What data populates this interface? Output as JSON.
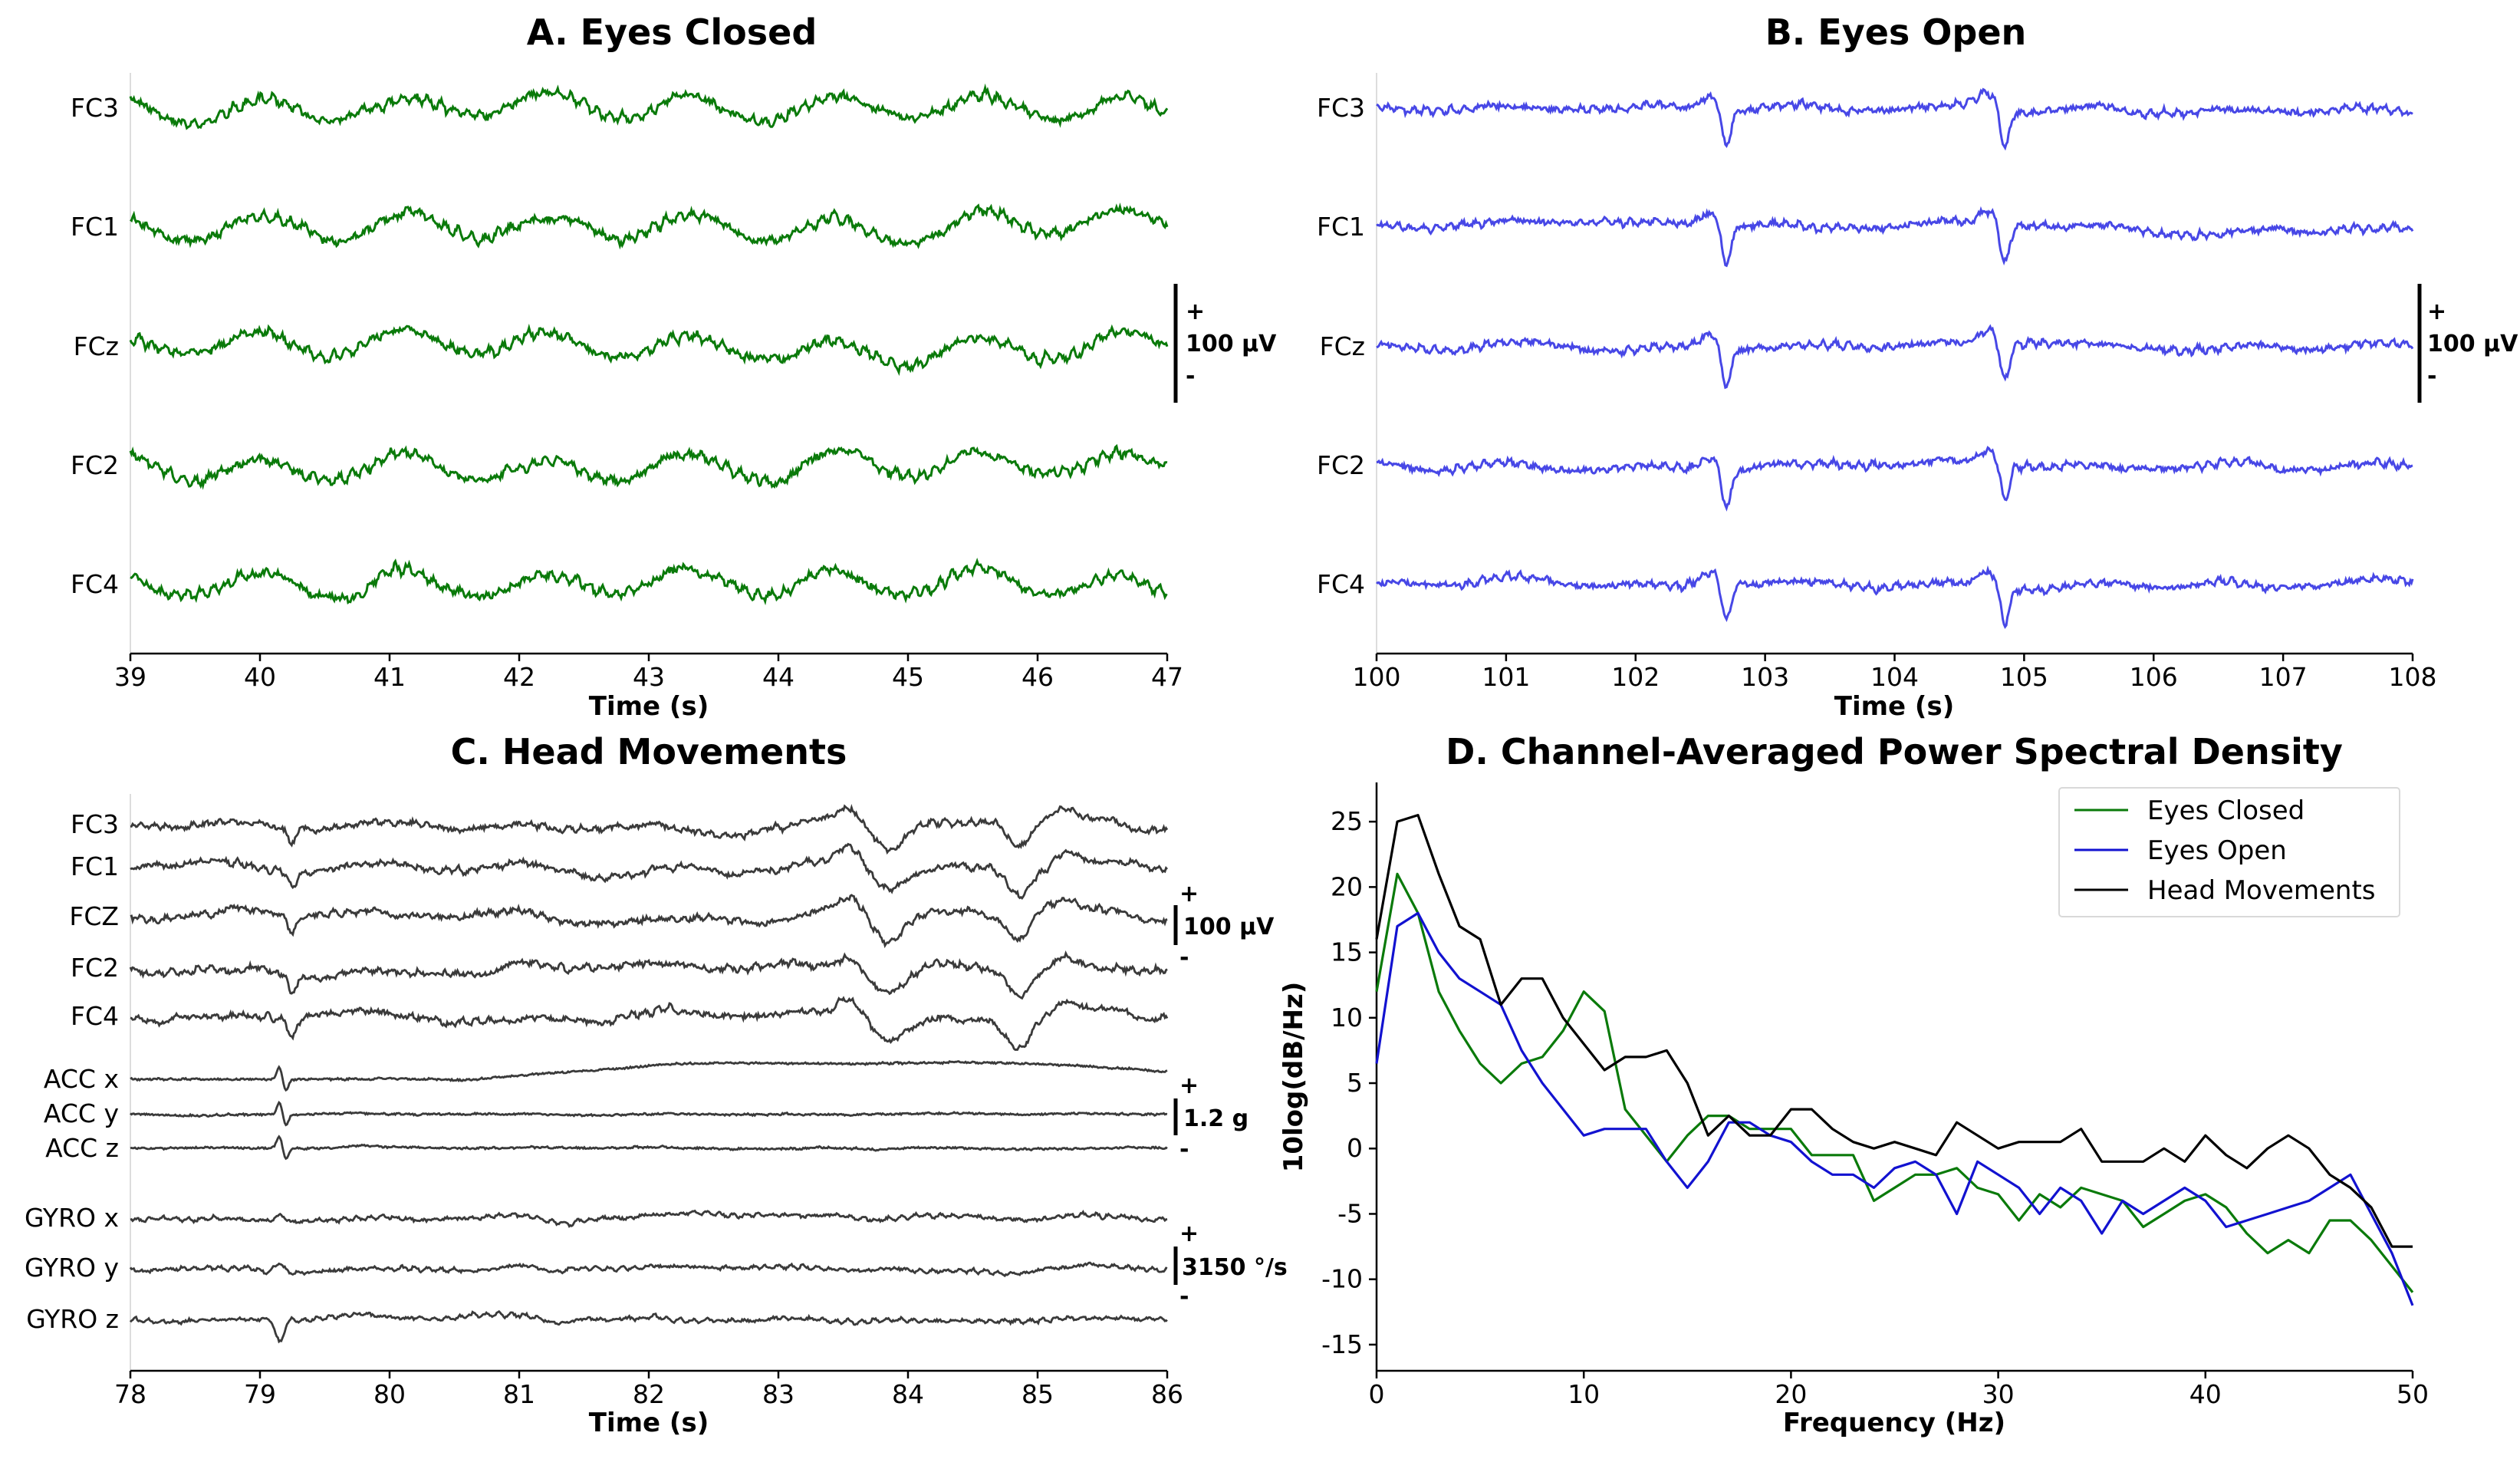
{
  "chart_data": [
    {
      "type": "line",
      "panel": "A",
      "title": "A. Eyes Closed",
      "xlabel": "Time (s)",
      "xlim": [
        39,
        47
      ],
      "xticks": [
        "39",
        "40",
        "41",
        "42",
        "43",
        "44",
        "45",
        "46",
        "47"
      ],
      "channels": [
        "FC3",
        "FC1",
        "FCz",
        "FC2",
        "FC4"
      ],
      "color": "#0a7a0a",
      "scale_bar": {
        "plus": "+",
        "label": "100 µV",
        "minus": "-"
      }
    },
    {
      "type": "line",
      "panel": "B",
      "title": "B. Eyes Open",
      "xlabel": "Time (s)",
      "xlim": [
        100,
        108
      ],
      "xticks": [
        "100",
        "101",
        "102",
        "103",
        "104",
        "105",
        "106",
        "107",
        "108"
      ],
      "channels": [
        "FC3",
        "FC1",
        "FCz",
        "FC2",
        "FC4"
      ],
      "color": "#4747e6",
      "blink_times": [
        102.7,
        104.85
      ],
      "scale_bar": {
        "plus": "+",
        "label": "100 µV",
        "minus": "-"
      }
    },
    {
      "type": "line",
      "panel": "C",
      "title": "C. Head Movements",
      "xlabel": "Time (s)",
      "xlim": [
        78,
        86
      ],
      "xticks": [
        "78",
        "79",
        "80",
        "81",
        "82",
        "83",
        "84",
        "85",
        "86"
      ],
      "channels": [
        "FC3",
        "FC1",
        "FCZ",
        "FC2",
        "FC4",
        "ACC x",
        "ACC y",
        "ACC z",
        "GYRO x",
        "GYRO y",
        "GYRO z"
      ],
      "color": "#3a3a3a",
      "scale_bars": [
        {
          "plus": "+",
          "label": "100 µV",
          "minus": "-"
        },
        {
          "plus": "+",
          "label": "1.2 g",
          "minus": "-"
        },
        {
          "plus": "+",
          "label": "3150 °/s",
          "minus": "-"
        }
      ]
    },
    {
      "type": "line",
      "panel": "D",
      "title": "D. Channel-Averaged Power Spectral Density",
      "xlabel": "Frequency (Hz)",
      "ylabel": "10log(dB/Hz)",
      "xlim": [
        0,
        50
      ],
      "ylim": [
        -17,
        28
      ],
      "xticks": [
        "0",
        "10",
        "20",
        "30",
        "40",
        "50"
      ],
      "yticks": [
        "-15",
        "-10",
        "-5",
        "0",
        "5",
        "10",
        "15",
        "20",
        "25"
      ],
      "legend_position": "top-right",
      "series": [
        {
          "name": "Eyes Closed",
          "color": "#0a7a0a",
          "x": [
            0,
            1,
            2,
            3,
            4,
            5,
            6,
            7,
            8,
            9,
            10,
            11,
            12,
            13,
            14,
            15,
            16,
            17,
            18,
            19,
            20,
            21,
            22,
            23,
            24,
            25,
            26,
            27,
            28,
            29,
            30,
            31,
            32,
            33,
            34,
            35,
            36,
            37,
            38,
            39,
            40,
            41,
            42,
            43,
            44,
            45,
            46,
            47,
            48,
            49,
            50
          ],
          "values": [
            12,
            21,
            18,
            12,
            9,
            6.5,
            5,
            6.5,
            7,
            9,
            12,
            10.5,
            3,
            1,
            -1,
            1,
            2.5,
            2.5,
            1.5,
            1.5,
            1.5,
            -0.5,
            -0.5,
            -0.5,
            -4,
            -3,
            -2,
            -2,
            -1.5,
            -3,
            -3.5,
            -5.5,
            -3.5,
            -4.5,
            -3,
            -3.5,
            -4,
            -6,
            -5,
            -4,
            -3.5,
            -4.5,
            -6.5,
            -8,
            -7,
            -8,
            -5.5,
            -5.5,
            -7,
            -9,
            -11
          ]
        },
        {
          "name": "Eyes Open",
          "color": "#1212d0",
          "x": [
            0,
            1,
            2,
            3,
            4,
            5,
            6,
            7,
            8,
            9,
            10,
            11,
            12,
            13,
            14,
            15,
            16,
            17,
            18,
            19,
            20,
            21,
            22,
            23,
            24,
            25,
            26,
            27,
            28,
            29,
            30,
            31,
            32,
            33,
            34,
            35,
            36,
            37,
            38,
            39,
            40,
            41,
            42,
            43,
            44,
            45,
            46,
            47,
            48,
            49,
            50
          ],
          "values": [
            6.5,
            17,
            18,
            15,
            13,
            12,
            11,
            7.5,
            5,
            3,
            1,
            1.5,
            1.5,
            1.5,
            -1,
            -3,
            -1,
            2,
            2,
            1,
            0.5,
            -1,
            -2,
            -2,
            -3,
            -1.5,
            -1,
            -2,
            -5,
            -1,
            -2,
            -3,
            -5,
            -3,
            -4,
            -6.5,
            -4,
            -5,
            -4,
            -3,
            -4,
            -6,
            -5.5,
            -5,
            -4.5,
            -4,
            -3,
            -2,
            -5,
            -8,
            -12
          ]
        },
        {
          "name": "Head Movements",
          "color": "#000000",
          "x": [
            0,
            1,
            2,
            3,
            4,
            5,
            6,
            7,
            8,
            9,
            10,
            11,
            12,
            13,
            14,
            15,
            16,
            17,
            18,
            19,
            20,
            21,
            22,
            23,
            24,
            25,
            26,
            27,
            28,
            29,
            30,
            31,
            32,
            33,
            34,
            35,
            36,
            37,
            38,
            39,
            40,
            41,
            42,
            43,
            44,
            45,
            46,
            47,
            48,
            49,
            50
          ],
          "values": [
            16,
            25,
            25.5,
            21,
            17,
            16,
            11,
            13,
            13,
            10,
            8,
            6,
            7,
            7,
            7.5,
            5,
            1,
            2.5,
            1,
            1,
            3,
            3,
            1.5,
            0.5,
            0,
            0.5,
            0,
            -0.5,
            2,
            1,
            0,
            0.5,
            0.5,
            0.5,
            1.5,
            -1,
            -1,
            -1,
            0,
            -1,
            1,
            -0.5,
            -1.5,
            0,
            1,
            0,
            -2,
            -3,
            -4.5,
            -7.5,
            -7.5
          ]
        }
      ]
    }
  ]
}
